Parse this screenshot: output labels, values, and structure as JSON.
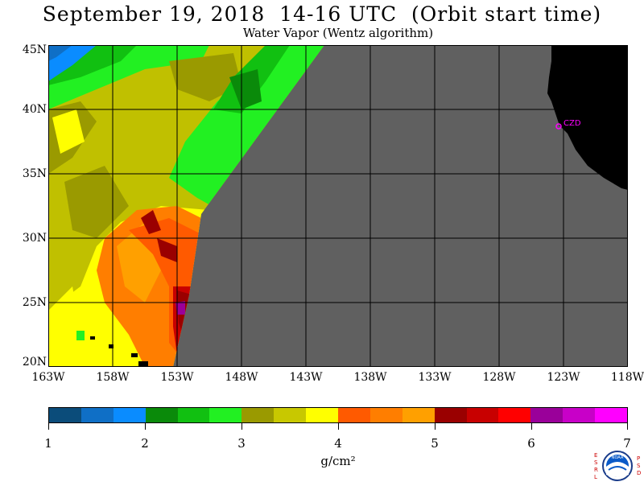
{
  "title": "September 19, 2018  14-16 UTC  (Orbit start time)",
  "subtitle": "Water Vapor (Wentz algorithm)",
  "map": {
    "lat_labels": [
      "45N",
      "40N",
      "35N",
      "30N",
      "25N",
      "20N"
    ],
    "lon_labels": [
      "163W",
      "158W",
      "153W",
      "148W",
      "143W",
      "138W",
      "133W",
      "128W",
      "123W",
      "118W"
    ],
    "station_label": "CZD",
    "no_data_color": "#606060",
    "land_color": "#000000",
    "station_color": "#ff00ff"
  },
  "colorbar": {
    "colors": [
      "#0b4c7a",
      "#0f6fc6",
      "#0a8cff",
      "#0a8a0a",
      "#11c011",
      "#22f022",
      "#9a9a00",
      "#c8c800",
      "#ffff00",
      "#ff5a00",
      "#ff7e00",
      "#ffa000",
      "#9a0000",
      "#c80000",
      "#ff0000",
      "#9a009a",
      "#c800c8",
      "#ff00ff"
    ],
    "tick_labels": [
      "1",
      "2",
      "3",
      "4",
      "5",
      "6",
      "7"
    ],
    "units": "g/cm²"
  },
  "logo": {
    "left_text": "ESRL",
    "right_text": "PSD",
    "center_text": "NOAA"
  }
}
